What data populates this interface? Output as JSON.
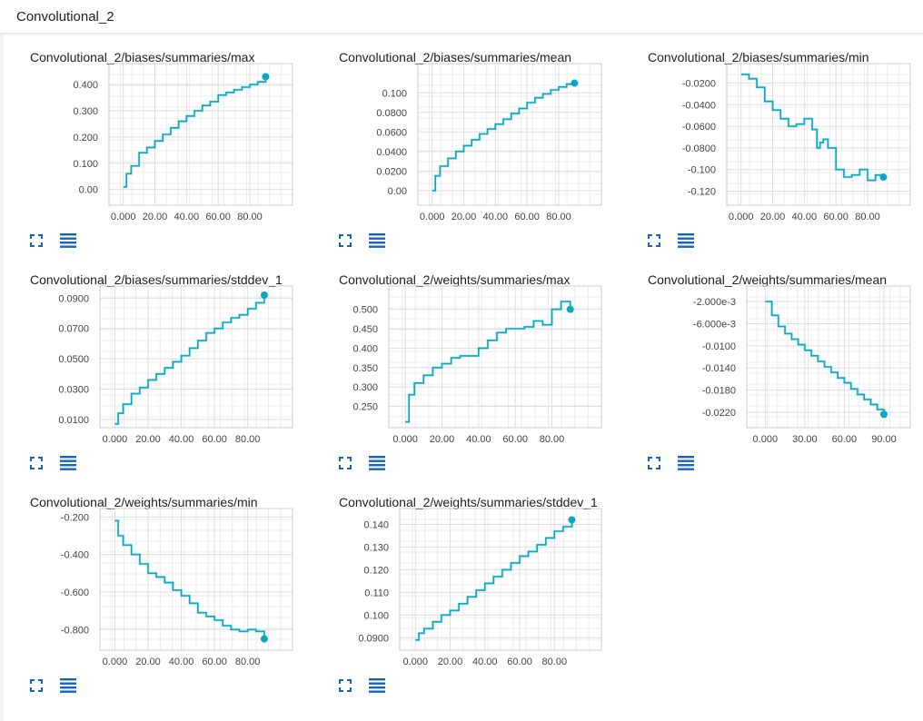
{
  "header": {
    "title": "Convolutional_2"
  },
  "colors": {
    "line": "#0aa8c0",
    "line_faint": "#a6dfe8",
    "grid": "#dedede",
    "frame": "#cccccc"
  },
  "icons": {
    "expand": "expand-icon",
    "menu": "data-menu-icon"
  },
  "chart_data": [
    {
      "type": "line",
      "title": "Convolutional_2/biases/summaries/max",
      "xlim": [
        -9,
        107
      ],
      "ylim": [
        -0.06,
        0.48
      ],
      "xticks": [
        0,
        20,
        40,
        60,
        80
      ],
      "xtick_labels": [
        "0.000",
        "20.00",
        "40.00",
        "60.00",
        "80.00"
      ],
      "yticks": [
        0,
        0.1,
        0.2,
        0.3,
        0.4
      ],
      "ytick_labels": [
        "0.00",
        "0.100",
        "0.200",
        "0.300",
        "0.400"
      ],
      "x": [
        0,
        2,
        5,
        10,
        15,
        20,
        25,
        30,
        35,
        40,
        45,
        50,
        55,
        60,
        65,
        70,
        75,
        80,
        85,
        90
      ],
      "y": [
        0.01,
        0.06,
        0.09,
        0.14,
        0.16,
        0.185,
        0.21,
        0.235,
        0.26,
        0.28,
        0.3,
        0.32,
        0.335,
        0.36,
        0.37,
        0.38,
        0.39,
        0.4,
        0.41,
        0.43
      ]
    },
    {
      "type": "line",
      "title": "Convolutional_2/biases/summaries/mean",
      "xlim": [
        -9,
        107
      ],
      "ylim": [
        -0.015,
        0.13
      ],
      "xticks": [
        0,
        20,
        40,
        60,
        80
      ],
      "xtick_labels": [
        "0.000",
        "20.00",
        "40.00",
        "60.00",
        "80.00"
      ],
      "yticks": [
        0,
        0.02,
        0.04,
        0.06,
        0.08,
        0.1
      ],
      "ytick_labels": [
        "0.00",
        "0.0200",
        "0.0400",
        "0.0600",
        "0.0800",
        "0.100"
      ],
      "x": [
        0,
        2,
        5,
        10,
        15,
        20,
        25,
        30,
        35,
        40,
        45,
        50,
        55,
        60,
        65,
        70,
        75,
        80,
        85,
        90
      ],
      "y": [
        0,
        0.015,
        0.025,
        0.033,
        0.04,
        0.046,
        0.052,
        0.058,
        0.063,
        0.068,
        0.073,
        0.079,
        0.084,
        0.09,
        0.095,
        0.099,
        0.103,
        0.106,
        0.109,
        0.11
      ]
    },
    {
      "type": "line",
      "title": "Convolutional_2/biases/summaries/min",
      "xlim": [
        -9,
        107
      ],
      "ylim": [
        -0.133,
        -0.002
      ],
      "xticks": [
        0,
        20,
        40,
        60,
        80
      ],
      "xtick_labels": [
        "0.000",
        "20.00",
        "40.00",
        "60.00",
        "80.00"
      ],
      "yticks": [
        -0.12,
        -0.1,
        -0.08,
        -0.06,
        -0.04,
        -0.02
      ],
      "ytick_labels": [
        "-0.120",
        "-0.100",
        "-0.0800",
        "-0.0600",
        "-0.0400",
        "-0.0200"
      ],
      "x": [
        0,
        5,
        10,
        15,
        20,
        25,
        30,
        35,
        40,
        45,
        48,
        50,
        52,
        55,
        60,
        65,
        70,
        75,
        80,
        85,
        90
      ],
      "y": [
        -0.012,
        -0.016,
        -0.024,
        -0.037,
        -0.045,
        -0.053,
        -0.06,
        -0.058,
        -0.053,
        -0.063,
        -0.08,
        -0.075,
        -0.072,
        -0.08,
        -0.1,
        -0.107,
        -0.105,
        -0.1,
        -0.11,
        -0.105,
        -0.107
      ]
    },
    {
      "type": "line",
      "title": "Convolutional_2/biases/summaries/stddev_1",
      "xlim": [
        -9,
        107
      ],
      "ylim": [
        0.0045,
        0.098
      ],
      "xticks": [
        0,
        20,
        40,
        60,
        80
      ],
      "xtick_labels": [
        "0.000",
        "20.00",
        "40.00",
        "60.00",
        "80.00"
      ],
      "yticks": [
        0.01,
        0.03,
        0.05,
        0.07,
        0.09
      ],
      "ytick_labels": [
        "0.0100",
        "0.0300",
        "0.0500",
        "0.0700",
        "0.0900"
      ],
      "x": [
        0,
        2,
        5,
        10,
        15,
        20,
        25,
        30,
        35,
        40,
        45,
        50,
        55,
        60,
        65,
        70,
        75,
        80,
        85,
        90
      ],
      "y": [
        0.007,
        0.014,
        0.02,
        0.027,
        0.031,
        0.036,
        0.04,
        0.044,
        0.048,
        0.052,
        0.057,
        0.062,
        0.067,
        0.07,
        0.074,
        0.077,
        0.079,
        0.083,
        0.087,
        0.092
      ]
    },
    {
      "type": "line",
      "title": "Convolutional_2/weights/summaries/max",
      "xlim": [
        -9,
        107
      ],
      "ylim": [
        0.195,
        0.56
      ],
      "xticks": [
        0,
        20,
        40,
        60,
        80
      ],
      "xtick_labels": [
        "0.000",
        "20.00",
        "40.00",
        "60.00",
        "80.00"
      ],
      "yticks": [
        0.25,
        0.3,
        0.35,
        0.4,
        0.45,
        0.5
      ],
      "ytick_labels": [
        "0.250",
        "0.300",
        "0.350",
        "0.400",
        "0.450",
        "0.500"
      ],
      "x": [
        0,
        2,
        5,
        10,
        15,
        20,
        25,
        30,
        35,
        40,
        45,
        50,
        55,
        60,
        65,
        70,
        75,
        80,
        85,
        90
      ],
      "y": [
        0.21,
        0.28,
        0.31,
        0.33,
        0.35,
        0.36,
        0.375,
        0.38,
        0.38,
        0.4,
        0.42,
        0.44,
        0.45,
        0.45,
        0.455,
        0.47,
        0.46,
        0.5,
        0.52,
        0.5
      ]
    },
    {
      "type": "line",
      "title": "Convolutional_2/weights/summaries/mean",
      "xlim": [
        -14,
        110
      ],
      "ylim": [
        -0.0248,
        0.0008
      ],
      "xticks": [
        0,
        30,
        60,
        90
      ],
      "xtick_labels": [
        "0.000",
        "30.00",
        "60.00",
        "90.00"
      ],
      "yticks": [
        -0.022,
        -0.018,
        -0.014,
        -0.01,
        -0.006,
        -0.002
      ],
      "ytick_labels": [
        "-0.0220",
        "-0.0180",
        "-0.0140",
        "-0.0100",
        "-6.000e-3",
        "-2.000e-3"
      ],
      "x": [
        0,
        5,
        10,
        15,
        20,
        25,
        30,
        35,
        40,
        45,
        50,
        55,
        60,
        65,
        70,
        75,
        80,
        85,
        90
      ],
      "y": [
        -0.002,
        -0.0045,
        -0.0065,
        -0.0078,
        -0.0088,
        -0.0098,
        -0.0108,
        -0.0118,
        -0.0128,
        -0.0138,
        -0.0148,
        -0.0158,
        -0.0167,
        -0.0178,
        -0.0188,
        -0.0197,
        -0.0206,
        -0.0215,
        -0.0224
      ]
    },
    {
      "type": "line",
      "title": "Convolutional_2/weights/summaries/min",
      "xlim": [
        -9,
        107
      ],
      "ylim": [
        -0.91,
        -0.155
      ],
      "xticks": [
        0,
        20,
        40,
        60,
        80
      ],
      "xtick_labels": [
        "0.000",
        "20.00",
        "40.00",
        "60.00",
        "80.00"
      ],
      "yticks": [
        -0.8,
        -0.6,
        -0.4,
        -0.2
      ],
      "ytick_labels": [
        "-0.800",
        "-0.600",
        "-0.400",
        "-0.200"
      ],
      "x": [
        0,
        2,
        5,
        10,
        15,
        20,
        25,
        30,
        35,
        40,
        45,
        50,
        55,
        60,
        65,
        70,
        75,
        80,
        85,
        90
      ],
      "y": [
        -0.22,
        -0.3,
        -0.35,
        -0.4,
        -0.45,
        -0.5,
        -0.52,
        -0.55,
        -0.59,
        -0.62,
        -0.66,
        -0.71,
        -0.73,
        -0.75,
        -0.78,
        -0.8,
        -0.81,
        -0.8,
        -0.81,
        -0.85
      ]
    },
    {
      "type": "line",
      "title": "Convolutional_2/weights/summaries/stddev_1",
      "xlim": [
        -9,
        107
      ],
      "ylim": [
        0.0845,
        0.147
      ],
      "xticks": [
        0,
        20,
        40,
        60,
        80
      ],
      "xtick_labels": [
        "0.000",
        "20.00",
        "40.00",
        "60.00",
        "80.00"
      ],
      "yticks": [
        0.09,
        0.1,
        0.11,
        0.12,
        0.13,
        0.14
      ],
      "ytick_labels": [
        "0.0900",
        "0.100",
        "0.110",
        "0.120",
        "0.130",
        "0.140"
      ],
      "x": [
        0,
        2,
        5,
        10,
        15,
        20,
        25,
        30,
        35,
        40,
        45,
        50,
        55,
        60,
        65,
        70,
        75,
        80,
        85,
        90
      ],
      "y": [
        0.089,
        0.092,
        0.094,
        0.097,
        0.1,
        0.102,
        0.105,
        0.108,
        0.111,
        0.114,
        0.117,
        0.12,
        0.123,
        0.126,
        0.128,
        0.131,
        0.134,
        0.137,
        0.139,
        0.142
      ]
    }
  ]
}
